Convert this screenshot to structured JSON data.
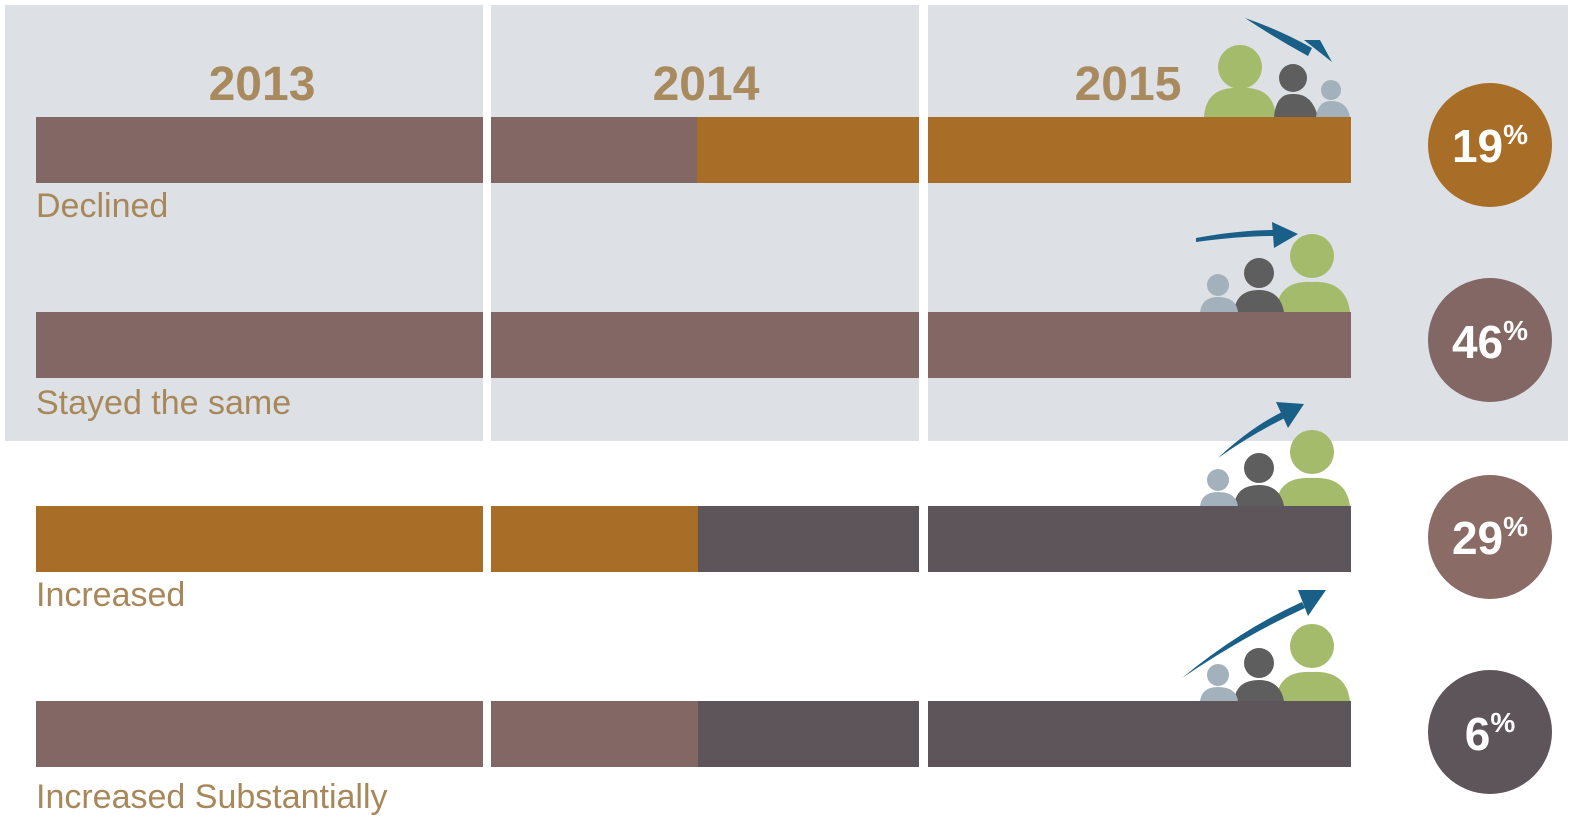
{
  "years": [
    "2013",
    "2014",
    "2015"
  ],
  "rows": [
    {
      "label": "Declined",
      "value": "19",
      "unit": "%"
    },
    {
      "label": "Stayed the same",
      "value": "46",
      "unit": "%"
    },
    {
      "label": "Increased",
      "value": "29",
      "unit": "%"
    },
    {
      "label": "Increased Substantially",
      "value": "6",
      "unit": "%"
    }
  ]
}
